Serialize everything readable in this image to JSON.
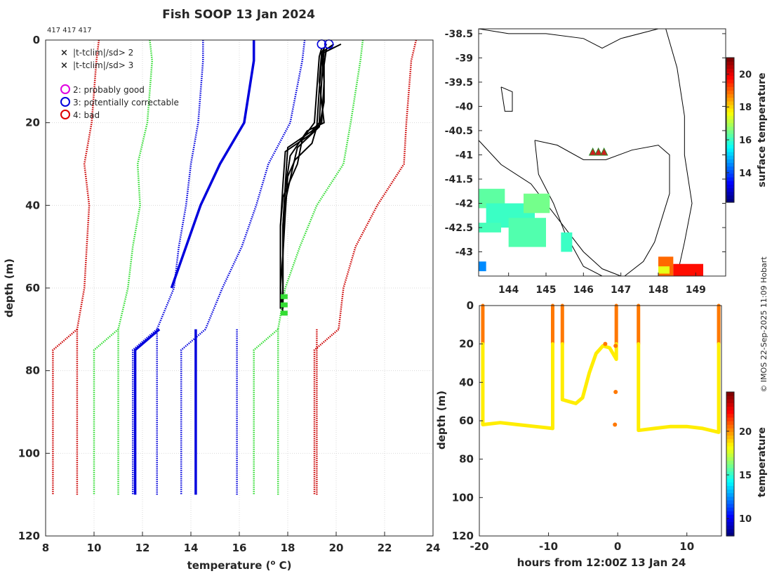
{
  "header": {
    "title": "Fish SOOP 13 Jan 2024",
    "cast_ids": "417 417 417",
    "credit": "© IMOS 22-Sep-2025 11:09 Hobart"
  },
  "legend": {
    "green_cross": "|t-tclim|/sd> 2",
    "red_cross": "|t-tclim|/sd> 3",
    "magenta_circle": "2: probably good",
    "blue_circle": "3: potentially correctable",
    "red_circle": "4: bad"
  },
  "colors": {
    "climatology_red": "#cc0000",
    "climatology_green": "#33dd33",
    "climatology_blue": "#0000dd",
    "profile_black": "#000000",
    "grid": "#d9d9d9"
  },
  "chart_data": [
    {
      "type": "line",
      "name": "profile",
      "xlabel": "temperature (",
      "xlabel_sup": "o",
      "xlabel_tail": " C)",
      "ylabel": "depth (m)",
      "xlim": [
        8,
        24
      ],
      "ylim": [
        120,
        0
      ],
      "xticks": [
        "8",
        "10",
        "12",
        "14",
        "16",
        "18",
        "20",
        "22",
        "24"
      ],
      "yticks": [
        "0",
        "20",
        "40",
        "60",
        "80",
        "100",
        "120"
      ],
      "climatology_depths": [
        0,
        5,
        20,
        30,
        40,
        50,
        60,
        70,
        75,
        110
      ],
      "series": [
        {
          "name": "clim-3sd-low",
          "color": "red",
          "style": "dotted",
          "values": [
            10.2,
            10.1,
            9.9,
            9.6,
            9.8,
            9.7,
            9.6,
            9.3,
            8.3,
            8.3
          ]
        },
        {
          "name": "clim-2sd-low",
          "color": "green",
          "style": "dotted",
          "values": [
            12.3,
            12.4,
            12.2,
            11.8,
            11.9,
            11.6,
            11.4,
            11.0,
            10.0,
            10.0
          ]
        },
        {
          "name": "clim-1sd-low",
          "color": "blue",
          "style": "dotted",
          "values": [
            14.5,
            14.5,
            14.3,
            14.0,
            13.8,
            13.5,
            13.3,
            12.6,
            11.6,
            11.6
          ]
        },
        {
          "name": "clim-mean",
          "color": "blue",
          "style": "solid",
          "values": [
            16.6,
            16.6,
            16.2,
            15.2,
            14.4,
            13.8,
            13.2,
            12.7,
            11.7,
            11.7
          ]
        },
        {
          "name": "clim-1sd-high",
          "color": "blue",
          "style": "dotted",
          "values": [
            18.7,
            18.6,
            18.1,
            17.2,
            16.7,
            16.1,
            15.3,
            14.6,
            13.6,
            13.6
          ]
        },
        {
          "name": "clim-2sd-high",
          "color": "green",
          "style": "dotted",
          "values": [
            21.1,
            21.0,
            20.6,
            20.3,
            19.2,
            18.5,
            17.9,
            17.6,
            16.6,
            16.6
          ]
        },
        {
          "name": "clim-3sd-high",
          "color": "red",
          "style": "dotted",
          "values": [
            23.3,
            23.1,
            22.9,
            22.8,
            21.7,
            20.8,
            20.3,
            20.1,
            19.1,
            19.1
          ]
        }
      ],
      "extra_lines": [
        {
          "name": "clim-mean-lower",
          "color": "blue",
          "style": "solid",
          "depths": [
            70,
            110
          ],
          "values": [
            14.2,
            14.2
          ]
        },
        {
          "name": "clim-1sd-high-lower",
          "color": "blue",
          "style": "dotted",
          "depths": [
            70,
            110
          ],
          "values": [
            15.9,
            15.9
          ]
        },
        {
          "name": "clim-2sd-high-lower",
          "color": "green",
          "style": "dotted",
          "depths": [
            70,
            110
          ],
          "values": [
            17.6,
            17.6
          ]
        },
        {
          "name": "clim-3sd-high-lower",
          "color": "red",
          "style": "dotted",
          "depths": [
            70,
            110
          ],
          "values": [
            19.2,
            19.2
          ]
        },
        {
          "name": "clim-3sd-low-lower",
          "color": "red",
          "style": "dotted",
          "depths": [
            70,
            110
          ],
          "values": [
            9.3,
            9.3
          ]
        },
        {
          "name": "clim-2sd-low-lower",
          "color": "green",
          "style": "dotted",
          "depths": [
            70,
            110
          ],
          "values": [
            11.0,
            11.0
          ]
        },
        {
          "name": "clim-1sd-low-lower",
          "color": "blue",
          "style": "dotted",
          "depths": [
            70,
            110
          ],
          "values": [
            12.6,
            12.6
          ]
        }
      ],
      "profiles": [
        {
          "depths": [
            1,
            3,
            10,
            20,
            22,
            26,
            35,
            45,
            55,
            60,
            65
          ],
          "values": [
            20.2,
            19.5,
            19.4,
            19.3,
            19.0,
            18.0,
            17.9,
            17.8,
            17.8,
            17.8,
            17.8
          ]
        },
        {
          "depths": [
            1,
            3,
            10,
            20,
            23,
            27,
            35,
            45,
            55,
            60,
            65
          ],
          "values": [
            19.9,
            19.4,
            19.5,
            19.4,
            18.9,
            17.9,
            17.8,
            17.7,
            17.7,
            17.7,
            17.7
          ]
        },
        {
          "depths": [
            1,
            3,
            10,
            20,
            22,
            28,
            36,
            45,
            55,
            60,
            65
          ],
          "values": [
            19.6,
            19.4,
            19.3,
            19.5,
            18.8,
            18.1,
            17.9,
            17.8,
            17.8,
            17.8,
            17.8
          ]
        },
        {
          "depths": [
            2,
            4,
            12,
            20,
            24,
            30,
            38,
            45,
            55,
            60,
            65
          ],
          "values": [
            19.4,
            19.3,
            19.2,
            19.1,
            18.6,
            18.4,
            17.8,
            17.7,
            17.7,
            17.7,
            17.7
          ]
        },
        {
          "depths": [
            2,
            5,
            12,
            21,
            25,
            29,
            33,
            42,
            52,
            60,
            66
          ],
          "values": [
            19.5,
            19.4,
            19.3,
            19.2,
            19.0,
            18.3,
            18.0,
            17.9,
            17.8,
            17.7,
            17.8
          ]
        },
        {
          "depths": [
            2,
            6,
            15,
            21,
            26,
            31,
            39,
            48,
            58,
            62,
            65
          ],
          "values": [
            19.6,
            19.5,
            19.5,
            19.3,
            18.4,
            18.2,
            17.9,
            17.8,
            17.8,
            17.8,
            17.7
          ]
        }
      ],
      "flagged_points": [
        {
          "depth": 1,
          "value": 19.4
        },
        {
          "depth": 1,
          "value": 19.7
        }
      ],
      "green_cross_depths": [
        62,
        64,
        66
      ]
    },
    {
      "type": "heatmap",
      "name": "map",
      "colorbar_label": "surface temperature",
      "x_ticks": [
        "144",
        "145",
        "146",
        "147",
        "148",
        "149"
      ],
      "y_ticks": [
        "-38.5",
        "-39",
        "-39.5",
        "-40",
        "-40.5",
        "-41",
        "-41.5",
        "-42",
        "-42.5",
        "-43"
      ],
      "colorbar_ticks": [
        "14",
        "16",
        "18",
        "20"
      ],
      "xlim": [
        143.2,
        149.8
      ],
      "ylim": [
        -43.5,
        -38.4
      ],
      "colorbar_range": [
        12.2,
        21
      ],
      "ship_track": [
        {
          "lon": 146.25,
          "lat": -40.95
        },
        {
          "lon": 146.4,
          "lat": -40.95
        },
        {
          "lon": 146.55,
          "lat": -40.95
        }
      ]
    },
    {
      "type": "scatter",
      "name": "section",
      "xlabel": "hours from 12:00Z 13 Jan 24",
      "ylabel": "depth (m)",
      "colorbar_label": "temperature",
      "xlim": [
        -20,
        15
      ],
      "ylim": [
        120,
        0
      ],
      "xticks": [
        "-20",
        "-10",
        "0",
        "10"
      ],
      "yticks": [
        "0",
        "20",
        "40",
        "60",
        "80",
        "100",
        "120"
      ],
      "colorbar_ticks": [
        "10",
        "15",
        "20"
      ],
      "colorbar_range": [
        8,
        24.5
      ],
      "casts": [
        {
          "t0": -19.5,
          "t1": -9.4,
          "bottom": [
            62,
            61,
            62,
            63,
            64
          ]
        },
        {
          "t0": -8.0,
          "t1": -0.2,
          "bottom": [
            49,
            50,
            51,
            48,
            35,
            25,
            21,
            22,
            28
          ]
        },
        {
          "t0": 3.0,
          "t1": 14.6,
          "bottom": [
            65,
            64,
            63,
            63,
            64,
            66
          ]
        }
      ]
    }
  ]
}
